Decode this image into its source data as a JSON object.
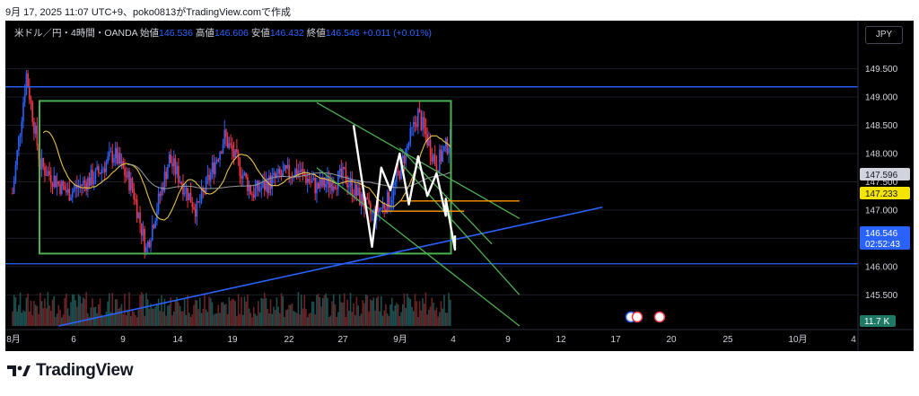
{
  "header": {
    "text": "9月 17, 2025 11:07 UTC+9、poko0813がTradingView.comで作成"
  },
  "legend": {
    "pair": "米ドル／円・4時間・OANDA",
    "open_label": "始値",
    "open": "146.536",
    "high_label": "高値",
    "high": "146.606",
    "low_label": "安値",
    "low": "146.432",
    "close_label": "終値",
    "close": "146.546",
    "change": "+0.011 (+0.01%)"
  },
  "currency_button": "JPY",
  "brand": {
    "name": "TradingView"
  },
  "colors": {
    "up": "#2962ff",
    "down": "#f23645",
    "blue_line": "#2962ff",
    "green_line": "#4caf50",
    "orange_line": "#ff9800",
    "ma_yellow": "#e6c14a",
    "ma_gray": "#9598a1"
  },
  "chart_data": {
    "type": "candlestick",
    "title": "",
    "price_axis": {
      "ticks": [
        149.5,
        149.0,
        148.5,
        148.0,
        147.5,
        147.0,
        146.5,
        146.0,
        145.5
      ],
      "ylim": [
        144.95,
        150.35
      ]
    },
    "time_axis": {
      "ticks": [
        "8月",
        "6",
        "9",
        "14",
        "19",
        "22",
        "27",
        "9月",
        "4",
        "9",
        "12",
        "17",
        "20",
        "25",
        "10月",
        "4"
      ]
    },
    "price_badges": [
      {
        "value": "147.596",
        "style": "gray"
      },
      {
        "value": "147.233",
        "style": "yellow"
      },
      {
        "value": "146.546",
        "time": "02:52:43",
        "style": "blue"
      }
    ],
    "volume_badge": "11.7 K",
    "horizontal_lines": [
      149.18,
      146.05
    ],
    "trend_line": {
      "from": [
        "2025-08-06",
        144.95
      ],
      "to": [
        "2025-10-04",
        147.05
      ]
    },
    "range_box": {
      "from": "2025-08-01",
      "to": "2025-09-20",
      "top": 148.93,
      "bottom": 146.23
    },
    "channel_lines": [
      {
        "from": [
          "2025-09-03",
          148.9
        ],
        "to": [
          "2025-09-25",
          146.85
        ]
      },
      {
        "from": [
          "2025-09-03",
          147.75
        ],
        "to": [
          "2025-09-25",
          144.95
        ]
      },
      {
        "from": [
          "2025-09-12",
          148.1
        ],
        "to": [
          "2025-09-22",
          146.4
        ]
      },
      {
        "from": [
          "2025-09-12",
          147.85
        ],
        "to": [
          "2025-09-25",
          145.5
        ]
      }
    ],
    "orange_lines": [
      {
        "from": "2025-09-12",
        "to": "2025-09-25",
        "price": 147.16
      },
      {
        "from": "2025-09-10",
        "to": "2025-09-19",
        "price": 146.98
      }
    ],
    "projection_path": [
      [
        "2025-09-07",
        148.5
      ],
      [
        "2025-09-09",
        146.35
      ],
      [
        "2025-09-10",
        147.75
      ],
      [
        "2025-09-11",
        147.35
      ],
      [
        "2025-09-12",
        148.0
      ],
      [
        "2025-09-13",
        147.1
      ],
      [
        "2025-09-14",
        147.95
      ],
      [
        "2025-09-15",
        147.25
      ],
      [
        "2025-09-16",
        147.65
      ],
      [
        "2025-09-17",
        146.9
      ],
      [
        "2025-09-17",
        147.2
      ],
      [
        "2025-09-18",
        146.3
      ],
      [
        "2025-09-18",
        146.55
      ]
    ]
  }
}
